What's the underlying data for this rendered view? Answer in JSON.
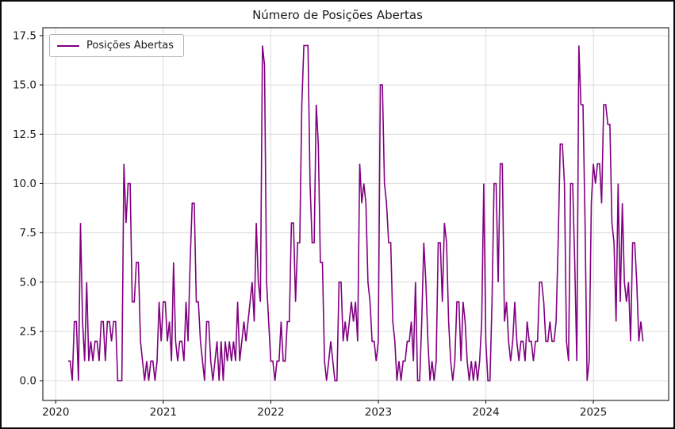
{
  "chart_data": {
    "type": "line",
    "title": "Número de Posições Abertas",
    "legend": {
      "position": "upper-left",
      "entries": [
        "Posições Abertas"
      ]
    },
    "line_color": "#800080",
    "grid": true,
    "grid_color": "#dcdcdc",
    "spine_color": "#1a1a1a",
    "xlabel": "",
    "ylabel": "",
    "xlim": [
      2019.88,
      2025.7
    ],
    "ylim": [
      -1.0,
      17.9
    ],
    "xticks": [
      2020,
      2021,
      2022,
      2023,
      2024,
      2025
    ],
    "yticks": [
      0.0,
      2.5,
      5.0,
      7.5,
      10.0,
      12.5,
      15.0,
      17.5
    ],
    "series": [
      {
        "name": "Posições Abertas",
        "x_start": 2020.115,
        "x_step_years": 0.019231,
        "values": [
          1,
          1,
          0,
          3,
          3,
          0,
          8,
          3,
          1,
          5,
          1,
          2,
          1,
          2,
          2,
          1,
          3,
          3,
          1,
          3,
          3,
          2,
          3,
          3,
          0,
          0,
          0,
          11,
          8,
          10,
          10,
          4,
          4,
          6,
          6,
          2,
          1,
          0,
          1,
          0,
          1,
          1,
          0,
          1,
          4,
          2,
          4,
          4,
          2,
          3,
          1,
          6,
          2,
          1,
          2,
          2,
          1,
          4,
          2,
          6,
          9,
          9,
          4,
          4,
          2,
          1,
          0,
          3,
          3,
          1,
          0,
          1,
          2,
          0,
          2,
          0,
          2,
          1,
          2,
          1,
          2,
          1,
          4,
          1,
          2,
          3,
          2,
          3,
          4,
          5,
          3,
          8,
          5,
          4,
          17,
          16,
          5,
          3,
          1,
          1,
          0,
          1,
          1,
          3,
          1,
          1,
          3,
          3,
          8,
          8,
          4,
          7,
          7,
          14,
          17,
          17,
          17,
          10,
          7,
          7,
          14,
          12,
          6,
          6,
          1,
          0,
          1,
          2,
          1,
          0,
          0,
          5,
          5,
          2,
          3,
          2,
          3,
          4,
          3,
          4,
          2,
          11,
          9,
          10,
          9,
          5,
          4,
          2,
          2,
          1,
          2,
          15,
          15,
          10,
          9,
          7,
          7,
          3,
          2,
          0,
          1,
          0,
          1,
          1,
          2,
          2,
          3,
          1,
          5,
          0,
          0,
          3,
          7,
          5,
          2,
          0,
          1,
          0,
          1,
          7,
          7,
          4,
          8,
          7,
          3,
          1,
          0,
          1,
          4,
          4,
          1,
          4,
          3,
          1,
          0,
          1,
          0,
          1,
          0,
          1,
          3,
          10,
          2,
          0,
          0,
          4,
          10,
          10,
          5,
          11,
          11,
          3,
          4,
          2,
          1,
          2,
          4,
          2,
          1,
          2,
          2,
          1,
          3,
          2,
          2,
          1,
          2,
          2,
          5,
          5,
          4,
          2,
          2,
          3,
          2,
          2,
          3,
          7,
          12,
          12,
          10,
          2,
          1,
          10,
          10,
          6,
          1,
          17,
          14,
          14,
          8,
          0,
          1,
          9,
          11,
          10,
          11,
          11,
          9,
          14,
          14,
          13,
          13,
          8,
          7,
          3,
          10,
          4,
          9,
          5,
          4,
          5,
          2,
          7,
          7,
          5,
          2,
          3,
          2
        ]
      }
    ]
  }
}
